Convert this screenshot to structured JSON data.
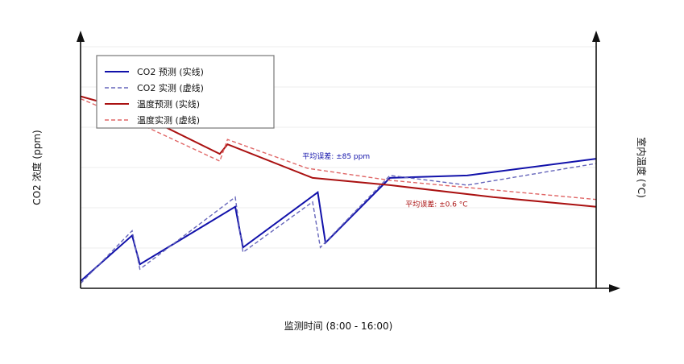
{
  "chart_data": {
    "type": "line",
    "title": "",
    "xlabel": "监测时间 (8:00 - 16:00)",
    "ylabel_left": "CO2 浓度 (ppm)",
    "ylabel_right": "室内温度 (°C)",
    "x": [
      0,
      1,
      1.15,
      3,
      3.15,
      4.5,
      4.65,
      6,
      8,
      10
    ],
    "xlim": [
      0,
      10
    ],
    "ylim": [
      0,
      100
    ],
    "grid": true,
    "legend_position": "top-left",
    "series": [
      {
        "name": "CO2 预测 (实线)",
        "axis": "left",
        "color": "#1111aa",
        "dash": "solid",
        "points": [
          [
            0,
            3
          ],
          [
            1,
            22
          ],
          [
            1.15,
            10
          ],
          [
            3,
            34
          ],
          [
            3.15,
            17
          ],
          [
            4.6,
            40
          ],
          [
            4.75,
            19
          ],
          [
            6,
            46
          ],
          [
            7.5,
            47
          ],
          [
            10,
            54
          ]
        ]
      },
      {
        "name": "CO2 实测 (虚线)",
        "axis": "left",
        "color": "#6666bb",
        "dash": "dashed",
        "points": [
          [
            0,
            2
          ],
          [
            1,
            24
          ],
          [
            1.15,
            8
          ],
          [
            3,
            38
          ],
          [
            3.15,
            15
          ],
          [
            4.5,
            36
          ],
          [
            4.65,
            17
          ],
          [
            6,
            47
          ],
          [
            7.5,
            43
          ],
          [
            10,
            52
          ]
        ]
      },
      {
        "name": "温度预测 (实线)",
        "axis": "right",
        "color": "#aa1111",
        "dash": "solid",
        "points": [
          [
            0,
            80
          ],
          [
            1,
            74
          ],
          [
            2.7,
            56
          ],
          [
            2.85,
            60
          ],
          [
            4.5,
            46
          ],
          [
            6,
            43
          ],
          [
            8,
            38
          ],
          [
            10,
            34
          ]
        ]
      },
      {
        "name": "温度实测 (虚线)",
        "axis": "right",
        "color": "#e06666",
        "dash": "dashed",
        "points": [
          [
            0,
            79
          ],
          [
            1,
            70
          ],
          [
            2.7,
            53
          ],
          [
            2.85,
            62
          ],
          [
            4.4,
            50
          ],
          [
            6,
            45
          ],
          [
            8,
            41
          ],
          [
            10,
            37
          ]
        ]
      }
    ],
    "annotations": [
      {
        "text": "平均误差: ±85 ppm",
        "color": "#1111aa",
        "x": 4.3,
        "y": 54
      },
      {
        "text": "平均误差: ±0.6 °C",
        "color": "#aa1111",
        "x": 6.3,
        "y": 34
      }
    ]
  }
}
